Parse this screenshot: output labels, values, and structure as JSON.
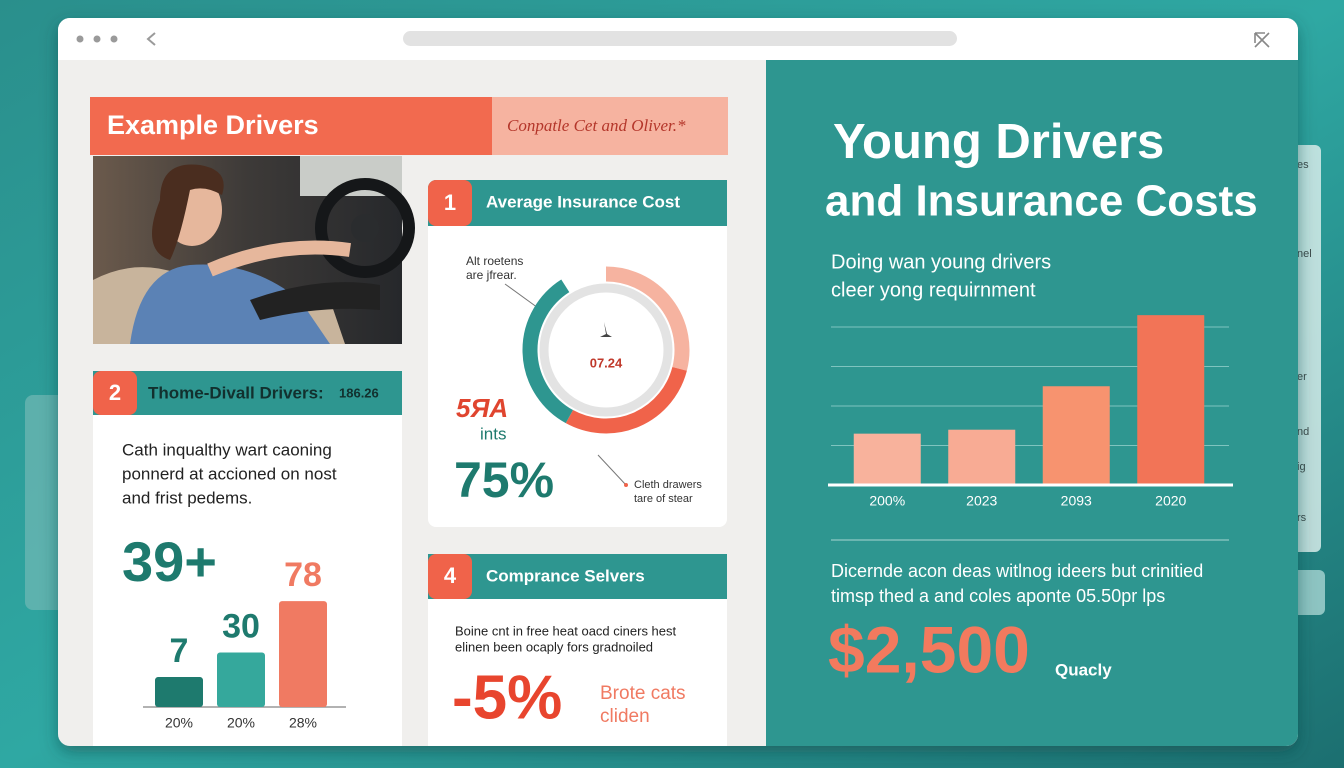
{
  "side_panel": {
    "texts": [
      "es",
      "nel",
      "er",
      "nd",
      "ig",
      "rs"
    ]
  },
  "header": {
    "title": "Example Drivers",
    "tagline": "Conpatle Cet and Oliver.*"
  },
  "card1": {
    "number": 1,
    "title": "Average Insurance Cost",
    "note_top": [
      "Alt roetens",
      "are jfrear."
    ],
    "donut": {
      "type": "donut",
      "center_label": "07.24",
      "segments": [
        {
          "color": "#f6b3a0",
          "value": 29
        },
        {
          "color": "#f0634a",
          "value": 29
        },
        {
          "color": "#2e9690",
          "value": 33
        }
      ]
    },
    "stat_red": "5ЯA",
    "stat_unit": "ints",
    "stat_big": "75%",
    "note_bottom": [
      "Cleth drawers",
      "tare of stear"
    ]
  },
  "card2": {
    "number": 2,
    "title": "Thome-Divall Drivers:",
    "title_value": "186.26",
    "body": [
      "Cath inqualthy wart caoning",
      "ponnerd at accioned on nost",
      "and frist pedems."
    ],
    "big_stat": "39+",
    "chart": {
      "type": "bar",
      "categories": [
        "20%",
        "20%",
        "28%"
      ],
      "values": [
        7,
        30,
        78
      ],
      "colors": [
        "#1e7a6e",
        "#35a89c",
        "#f07a62"
      ],
      "label_colors": [
        "#1e7a6e",
        "#1e7a6e",
        "#f07a62"
      ],
      "ylim": [
        -21,
        80
      ]
    }
  },
  "card4": {
    "number": 4,
    "title": "Comprance Selvers",
    "body": [
      "Boine cnt in free heat oacd ciners hest",
      "elinen been ocaply fors gradnoiled"
    ],
    "big_stat": "-5%",
    "side_note": [
      "Brote cats",
      "cliden"
    ]
  },
  "right": {
    "title": [
      "Young Drivers",
      "and Insurance Costs"
    ],
    "subtitle": [
      "Doing wan young drivers",
      "cleer yong requirnment"
    ],
    "chart": {
      "type": "bar",
      "categories": [
        "200%",
        "2023",
        "2093",
        "2020"
      ],
      "values": [
        1.3,
        1.4,
        2.5,
        4.3
      ],
      "colors": [
        "#f8b29c",
        "#f8ab94",
        "#f7936f",
        "#f27457"
      ],
      "ylim": [
        0,
        4.5
      ],
      "yticks": [
        0,
        1,
        2,
        3,
        4
      ],
      "grid": true
    },
    "body": [
      "Dicernde acon deas witlnog ideers but crinitied",
      "timsp thed a and coles aponte 05.50pr lps"
    ],
    "big_stat": "$2,500",
    "big_stat_note": "Quacly"
  }
}
